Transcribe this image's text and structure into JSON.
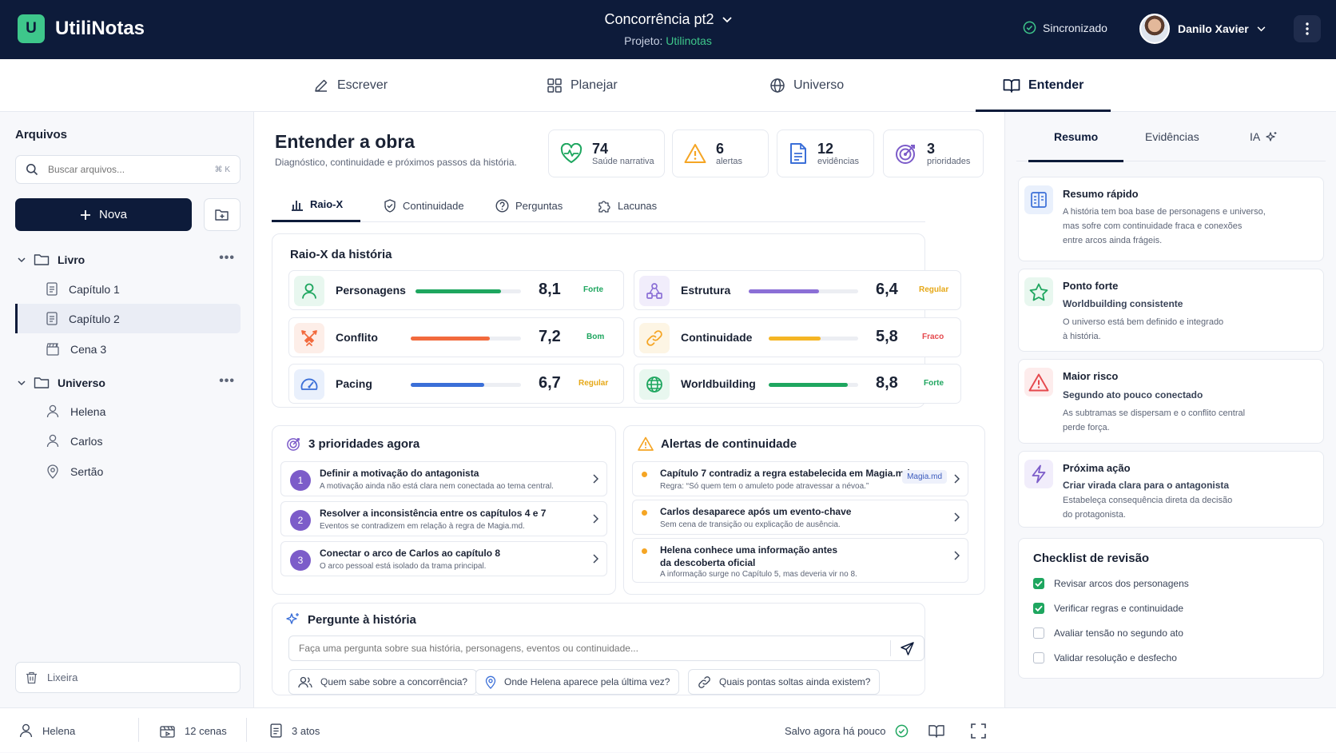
{
  "app": {
    "logo_letter": "U",
    "name": "UtiliNotas"
  },
  "document": {
    "title": "Concorrência pt2",
    "project_label": "Projeto:",
    "project_name": "Utilinotas"
  },
  "sync_status": "Sincronizado",
  "user": {
    "name": "Danilo Xavier"
  },
  "nav_tabs": [
    {
      "label": "Escrever",
      "icon": "pen-icon"
    },
    {
      "label": "Planejar",
      "icon": "grid-icon"
    },
    {
      "label": "Universo",
      "icon": "globe-icon"
    },
    {
      "label": "Entender",
      "icon": "book-icon",
      "active": true
    }
  ],
  "sidebar": {
    "title": "Arquivos",
    "search_placeholder": "Buscar arquivos...",
    "search_shortcut": "⌘ K",
    "new_button": "Nova",
    "folders": [
      {
        "name": "Livro",
        "items": [
          {
            "label": "Capítulo 1",
            "icon": "document-icon"
          },
          {
            "label": "Capítulo 2",
            "icon": "document-icon",
            "active": true
          },
          {
            "label": "Cena 3",
            "icon": "clapperboard-icon"
          }
        ]
      },
      {
        "name": "Universo",
        "items": [
          {
            "label": "Helena",
            "icon": "person-icon"
          },
          {
            "label": "Carlos",
            "icon": "person-icon"
          },
          {
            "label": "Sertão",
            "icon": "map-pin-icon"
          }
        ]
      }
    ],
    "trash_label": "Lixeira"
  },
  "main": {
    "title": "Entender a obra",
    "subtitle": "Diagnóstico, continuidade e próximos passos da história.",
    "stats": [
      {
        "value": "74",
        "label": "Saúde narrativa",
        "icon": "heart-pulse-icon",
        "color": "#1ea65f"
      },
      {
        "value": "6",
        "label": "alertas",
        "icon": "warning-icon",
        "color": "#f5a524"
      },
      {
        "value": "12",
        "label": "evidências",
        "icon": "document-icon",
        "color": "#3b6fd8"
      },
      {
        "value": "3",
        "label": "prioridades",
        "icon": "target-icon",
        "color": "#7c5cc9"
      }
    ],
    "tabs": [
      {
        "label": "Raio-X",
        "icon": "bar-chart-icon",
        "active": true
      },
      {
        "label": "Continuidade",
        "icon": "shield-check-icon"
      },
      {
        "label": "Perguntas",
        "icon": "question-icon"
      },
      {
        "label": "Lacunas",
        "icon": "puzzle-icon"
      }
    ],
    "xray": {
      "title": "Raio-X da história",
      "metrics": [
        {
          "name": "Personagens",
          "score": "8,1",
          "fill": 0.81,
          "tag": "Forte",
          "color": "#1ea65f",
          "tag_color": "#1ea65f",
          "bg": "#e8f7ef",
          "icon": "person-icon"
        },
        {
          "name": "Estrutura",
          "score": "6,4",
          "fill": 0.64,
          "tag": "Regular",
          "color": "#8b6fd6",
          "tag_color": "#e6a817",
          "bg": "#f1edfb",
          "icon": "structure-icon"
        },
        {
          "name": "Conflito",
          "score": "7,2",
          "fill": 0.72,
          "tag": "Bom",
          "color": "#f26a3d",
          "tag_color": "#1ea65f",
          "bg": "#fdeee8",
          "icon": "swords-icon"
        },
        {
          "name": "Continuidade",
          "score": "5,8",
          "fill": 0.58,
          "tag": "Fraco",
          "color": "#f5b524",
          "tag_color": "#e5484d",
          "bg": "#fdf5e4",
          "icon": "link-icon"
        },
        {
          "name": "Pacing",
          "score": "6,7",
          "fill": 0.67,
          "tag": "Regular",
          "color": "#3b6fd8",
          "tag_color": "#e6a817",
          "bg": "#e9f0fc",
          "icon": "gauge-icon"
        },
        {
          "name": "Worldbuilding",
          "score": "8,8",
          "fill": 0.88,
          "tag": "Forte",
          "color": "#1ea65f",
          "tag_color": "#1ea65f",
          "bg": "#e8f7ef",
          "icon": "globe-icon"
        }
      ]
    },
    "priorities": {
      "title": "3 prioridades agora",
      "items": [
        {
          "num": "1",
          "title": "Definir a motivação do antagonista",
          "sub": "A motivação ainda não está clara nem conectada ao tema central."
        },
        {
          "num": "2",
          "title": "Resolver a inconsistência entre os capítulos 4 e 7",
          "sub": "Eventos se contradizem em relação à regra de Magia.md."
        },
        {
          "num": "3",
          "title": "Conectar o arco de Carlos ao capítulo 8",
          "sub": "O arco pessoal está isolado da trama principal."
        }
      ]
    },
    "alerts": {
      "title": "Alertas de continuidade",
      "items": [
        {
          "title": "Capítulo 7 contradiz a regra estabelecida em Magia.md",
          "sub": "Regra: “Só quem tem o amuleto pode atravessar a névoa.”",
          "badge": "Magia.md"
        },
        {
          "title": "Carlos desaparece após um evento-chave",
          "sub": "Sem cena de transição ou explicação de ausência."
        },
        {
          "title": "Helena conhece uma informação antes",
          "title2": "da descoberta oficial",
          "sub": "A informação surge no Capítulo 5, mas deveria vir no 8."
        }
      ]
    },
    "ask": {
      "title": "Pergunte à história",
      "placeholder": "Faça uma pergunta sobre sua história, personagens, eventos ou continuidade...",
      "chips": [
        {
          "label": "Quem sabe sobre a concorrência?",
          "icon": "people-icon"
        },
        {
          "label": "Onde Helena aparece pela última vez?",
          "icon": "map-pin-icon"
        },
        {
          "label": "Quais pontas soltas ainda existem?",
          "icon": "link-icon"
        }
      ]
    }
  },
  "right": {
    "tabs": [
      {
        "label": "Resumo",
        "active": true
      },
      {
        "label": "Evidências"
      },
      {
        "label": "IA",
        "icon": "sparkle-icon"
      }
    ],
    "cards": [
      {
        "title": "Resumo rápido",
        "icon": "summary-icon",
        "color": "#3b6fd8",
        "bg": "#e9f0fc",
        "lines": [
          "A história tem boa base de personagens e universo,",
          "mas sofre com continuidade fraca e conexões",
          "entre arcos ainda frágeis."
        ]
      },
      {
        "title": "Ponto forte",
        "icon": "star-icon",
        "color": "#1ea65f",
        "bg": "#e8f7ef",
        "highlight": "Worldbuilding consistente",
        "lines": [
          "O universo está bem definido e integrado",
          "à história."
        ]
      },
      {
        "title": "Maior risco",
        "icon": "warning-icon",
        "color": "#e5484d",
        "bg": "#fdecec",
        "highlight": "Segundo ato pouco conectado",
        "lines": [
          "As subtramas se dispersam e o conflito central",
          "perde força."
        ]
      },
      {
        "title": "Próxima ação",
        "icon": "lightning-icon",
        "color": "#7c5cc9",
        "bg": "#f1edfb",
        "highlight": "Criar virada clara para o antagonista",
        "lines": [
          "Estabeleça consequência direta da decisão",
          "do protagonista."
        ]
      }
    ],
    "checklist": {
      "title": "Checklist de revisão",
      "items": [
        {
          "label": "Revisar arcos dos personagens",
          "checked": true
        },
        {
          "label": "Verificar regras e continuidade",
          "checked": true
        },
        {
          "label": "Avaliar tensão no segundo ato",
          "checked": false
        },
        {
          "label": "Validar resolução e desfecho",
          "checked": false
        }
      ]
    }
  },
  "statusbar": {
    "character": "Helena",
    "scenes": "12 cenas",
    "acts": "3 atos",
    "saved": "Salvo agora há pouco"
  }
}
